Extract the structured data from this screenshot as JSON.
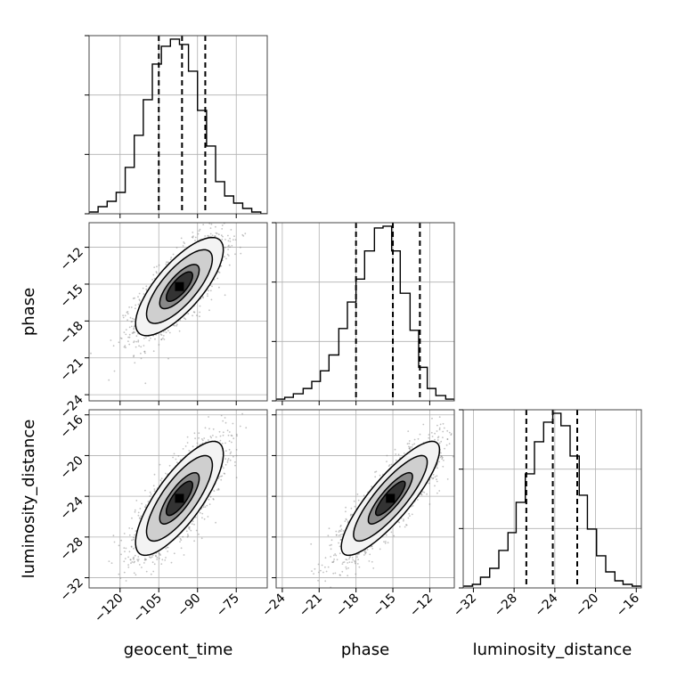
{
  "chart_data": {
    "type": "corner",
    "parameters": [
      "geocent_time",
      "phase",
      "luminosity_distance"
    ],
    "labels": {
      "geocent_time": "geocent_time",
      "phase": "phase",
      "luminosity_distance": "luminosity_distance"
    },
    "ranges": {
      "geocent_time": [
        -132,
        -63
      ],
      "phase": [
        -24.5,
        -10
      ],
      "luminosity_distance": [
        -33,
        -15.5
      ]
    },
    "ticks": {
      "geocent_time": [
        {
          "value": -120,
          "label": "−120"
        },
        {
          "value": -105,
          "label": "−105"
        },
        {
          "value": -90,
          "label": "−90"
        },
        {
          "value": -75,
          "label": "−75"
        }
      ],
      "phase": [
        {
          "value": -24,
          "label": "−24"
        },
        {
          "value": -21,
          "label": "−21"
        },
        {
          "value": -18,
          "label": "−18"
        },
        {
          "value": -15,
          "label": "−15"
        },
        {
          "value": -12,
          "label": "−12"
        }
      ],
      "luminosity_distance": [
        {
          "value": -32,
          "label": "−32"
        },
        {
          "value": -28,
          "label": "−28"
        },
        {
          "value": -24,
          "label": "−24"
        },
        {
          "value": -20,
          "label": "−20"
        },
        {
          "value": -16,
          "label": "−16"
        }
      ]
    },
    "quantiles": {
      "geocent_time": [
        -105,
        -96,
        -87
      ],
      "phase": [
        -18,
        -15,
        -12.8
      ],
      "luminosity_distance": [
        -26.8,
        -24.2,
        -21.8
      ]
    },
    "histograms": {
      "geocent_time": {
        "edges": [
          -132,
          -128.5,
          -125,
          -121.5,
          -118,
          -114.5,
          -111,
          -107.5,
          -104,
          -100.5,
          -97,
          -93.5,
          -90,
          -86.5,
          -83,
          -79.5,
          -76,
          -72.5,
          -69,
          -65.5,
          -63
        ],
        "counts": [
          1,
          4,
          7,
          12,
          26,
          44,
          64,
          84,
          94,
          98,
          95,
          80,
          58,
          38,
          18,
          10,
          6,
          3,
          1,
          0
        ]
      },
      "phase": {
        "edges": [
          -24.5,
          -23.8,
          -23.1,
          -22.3,
          -21.6,
          -20.9,
          -20.2,
          -19.4,
          -18.7,
          -18,
          -17.3,
          -16.5,
          -15.8,
          -15.1,
          -14.4,
          -13.6,
          -12.9,
          -12.2,
          -11.5,
          -10.7,
          -10
        ],
        "counts": [
          1,
          2,
          4,
          7,
          11,
          17,
          26,
          41,
          56,
          69,
          85,
          98,
          99,
          85,
          61,
          40,
          19,
          7,
          3,
          1
        ]
      },
      "luminosity_distance": {
        "edges": [
          -33,
          -32.1,
          -31.3,
          -30.4,
          -29.5,
          -28.6,
          -27.8,
          -26.9,
          -26,
          -25.1,
          -24.2,
          -23.4,
          -22.5,
          -21.6,
          -20.8,
          -19.9,
          -19,
          -18.1,
          -17.3,
          -16.4,
          -15.5
        ],
        "counts": [
          1,
          2,
          6,
          11,
          21,
          31,
          48,
          64,
          82,
          93,
          98,
          91,
          74,
          52,
          33,
          18,
          9,
          4,
          2,
          1
        ]
      }
    },
    "joint": [
      {
        "x": "geocent_time",
        "y": "phase",
        "center": [
          -97,
          -15.2
        ],
        "sd": [
          8.5,
          2.0
        ],
        "rho": 0.75,
        "samples": 1800
      },
      {
        "x": "geocent_time",
        "y": "luminosity_distance",
        "center": [
          -97,
          -24.2
        ],
        "sd": [
          8.5,
          2.8
        ],
        "rho": 0.78,
        "samples": 1800
      },
      {
        "x": "phase",
        "y": "luminosity_distance",
        "center": [
          -15.2,
          -24.2
        ],
        "sd": [
          2.0,
          2.8
        ],
        "rho": 0.85,
        "samples": 1800
      }
    ],
    "contour_levels": [
      0.6,
      0.9,
      1.5,
      2.0
    ],
    "grid": true,
    "legend": "none"
  }
}
